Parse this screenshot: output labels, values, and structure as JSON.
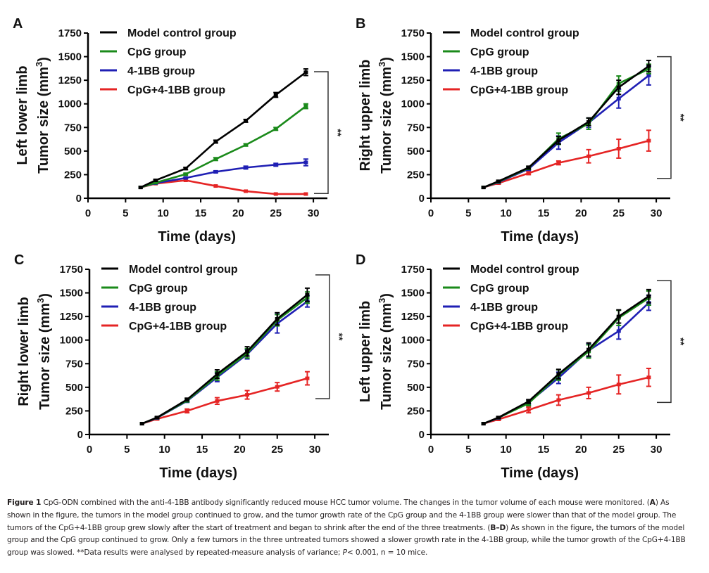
{
  "chart_data": [
    {
      "type": "line",
      "panel_label": "A",
      "ylabel_line1": "Left lower limb",
      "ylabel_line2": "Tumor size (mm",
      "ylabel_sup": "3",
      "ylabel_close": ")",
      "xlabel": "Time (days)",
      "xlim": [
        0,
        32
      ],
      "ylim": [
        0,
        1750
      ],
      "xticks": [
        0,
        5,
        10,
        15,
        20,
        25,
        30
      ],
      "yticks": [
        0,
        250,
        500,
        750,
        1000,
        1250,
        1500,
        1750
      ],
      "x": [
        7,
        9,
        13,
        17,
        21,
        25,
        29
      ],
      "series": [
        {
          "name": "Model control group",
          "color": "#000000",
          "values": [
            115,
            190,
            315,
            600,
            820,
            1095,
            1335
          ],
          "errors": [
            5,
            10,
            12,
            15,
            15,
            25,
            35
          ]
        },
        {
          "name": "CpG group",
          "color": "#1a8a1a",
          "values": [
            115,
            165,
            255,
            415,
            565,
            735,
            975
          ],
          "errors": [
            5,
            8,
            10,
            15,
            12,
            15,
            25
          ]
        },
        {
          "name": "4-1BB group",
          "color": "#1f1fb4",
          "values": [
            115,
            160,
            215,
            280,
            325,
            355,
            380
          ],
          "errors": [
            5,
            8,
            8,
            10,
            15,
            15,
            35
          ]
        },
        {
          "name": "CpG+4-1BB group",
          "color": "#e52424",
          "values": [
            115,
            155,
            190,
            130,
            75,
            45,
            45
          ],
          "errors": [
            5,
            5,
            5,
            5,
            5,
            5,
            5
          ]
        }
      ],
      "significance": {
        "label": "**",
        "range": [
          50,
          1340
        ]
      },
      "legend_position": "top-left"
    },
    {
      "type": "line",
      "panel_label": "B",
      "ylabel_line1": "Right upper limb",
      "ylabel_line2": "Tumor size (mm",
      "ylabel_sup": "3",
      "ylabel_close": ")",
      "xlabel": "Time (days)",
      "xlim": [
        0,
        32
      ],
      "ylim": [
        0,
        1750
      ],
      "xticks": [
        0,
        5,
        10,
        15,
        20,
        25,
        30
      ],
      "yticks": [
        0,
        250,
        500,
        750,
        1000,
        1250,
        1500,
        1750
      ],
      "x": [
        7,
        9,
        13,
        17,
        21,
        25,
        29
      ],
      "series": [
        {
          "name": "Model control group",
          "color": "#000000",
          "values": [
            115,
            180,
            325,
            615,
            810,
            1175,
            1400
          ],
          "errors": [
            5,
            10,
            15,
            40,
            40,
            75,
            60
          ]
        },
        {
          "name": "CpG group",
          "color": "#1a8a1a",
          "values": [
            115,
            175,
            320,
            630,
            790,
            1215,
            1370
          ],
          "errors": [
            5,
            10,
            15,
            60,
            60,
            80,
            50
          ]
        },
        {
          "name": "4-1BB group",
          "color": "#1f1fb4",
          "values": [
            115,
            170,
            310,
            590,
            800,
            1055,
            1300
          ],
          "errors": [
            5,
            10,
            15,
            70,
            50,
            100,
            100
          ]
        },
        {
          "name": "CpG+4-1BB group",
          "color": "#e52424",
          "values": [
            115,
            160,
            265,
            375,
            445,
            525,
            610
          ],
          "errors": [
            5,
            10,
            15,
            20,
            70,
            100,
            110
          ]
        }
      ],
      "significance": {
        "label": "**",
        "range": [
          210,
          1500
        ]
      },
      "legend_position": "top-left"
    },
    {
      "type": "line",
      "panel_label": "C",
      "ylabel_line1": "Right lower limb",
      "ylabel_line2": "Tumor size (mm",
      "ylabel_sup": "3",
      "ylabel_close": ")",
      "xlabel": "Time (days)",
      "xlim": [
        0,
        32
      ],
      "ylim": [
        0,
        1750
      ],
      "xticks": [
        0,
        5,
        10,
        15,
        20,
        25,
        30
      ],
      "yticks": [
        0,
        250,
        500,
        750,
        1000,
        1250,
        1500,
        1750
      ],
      "x": [
        7,
        9,
        13,
        17,
        21,
        25,
        29
      ],
      "series": [
        {
          "name": "Model control group",
          "color": "#000000",
          "values": [
            115,
            180,
            370,
            640,
            880,
            1225,
            1480
          ],
          "errors": [
            5,
            10,
            15,
            45,
            50,
            65,
            70
          ]
        },
        {
          "name": "CpG group",
          "color": "#1a8a1a",
          "values": [
            115,
            178,
            360,
            620,
            860,
            1210,
            1450
          ],
          "errors": [
            5,
            10,
            15,
            45,
            50,
            60,
            60
          ]
        },
        {
          "name": "4-1BB group",
          "color": "#1f1fb4",
          "values": [
            115,
            175,
            355,
            605,
            850,
            1175,
            1410
          ],
          "errors": [
            5,
            10,
            15,
            45,
            50,
            100,
            60
          ]
        },
        {
          "name": "CpG+4-1BB group",
          "color": "#e52424",
          "values": [
            115,
            165,
            250,
            355,
            420,
            505,
            595
          ],
          "errors": [
            5,
            10,
            20,
            35,
            45,
            45,
            70
          ]
        }
      ],
      "significance": {
        "label": "**",
        "range": [
          380,
          1690
        ]
      },
      "legend_position": "top-left"
    },
    {
      "type": "line",
      "panel_label": "D",
      "ylabel_line1": "Left upper limb",
      "ylabel_line2": "Tumor size (mm",
      "ylabel_sup": "3",
      "ylabel_close": ")",
      "xlabel": "Time (days)",
      "xlim": [
        0,
        32
      ],
      "ylim": [
        0,
        1750
      ],
      "xticks": [
        0,
        5,
        10,
        15,
        20,
        25,
        30
      ],
      "yticks": [
        0,
        250,
        500,
        750,
        1000,
        1250,
        1500,
        1750
      ],
      "x": [
        7,
        9,
        13,
        17,
        21,
        25,
        29
      ],
      "series": [
        {
          "name": "Model control group",
          "color": "#000000",
          "values": [
            115,
            180,
            350,
            640,
            900,
            1250,
            1465
          ],
          "errors": [
            5,
            10,
            20,
            50,
            70,
            70,
            70
          ]
        },
        {
          "name": "CpG group",
          "color": "#1a8a1a",
          "values": [
            115,
            178,
            330,
            630,
            880,
            1235,
            1445
          ],
          "errors": [
            5,
            10,
            25,
            55,
            70,
            80,
            75
          ]
        },
        {
          "name": "4-1BB group",
          "color": "#1f1fb4",
          "values": [
            115,
            175,
            340,
            600,
            890,
            1095,
            1395
          ],
          "errors": [
            5,
            10,
            25,
            60,
            70,
            85,
            80
          ]
        },
        {
          "name": "CpG+4-1BB group",
          "color": "#e52424",
          "values": [
            115,
            160,
            260,
            365,
            440,
            530,
            605
          ],
          "errors": [
            5,
            10,
            30,
            55,
            60,
            100,
            95
          ]
        }
      ],
      "significance": {
        "label": "**",
        "range": [
          340,
          1630
        ]
      },
      "legend_position": "top-left"
    }
  ],
  "caption": {
    "figure_label": "Figure 1",
    "text_1": " CpG-ODN combined with the anti-4-1BB antibody significantly reduced mouse HCC tumor volume. The changes in the tumor volume of each mouse were monitored. (",
    "bold_a": "A",
    "text_2": ") As shown in the figure, the tumors in the model group continued to grow, and the tumor growth rate of the CpG group and the 4-1BB group were slower than that of the model group. The tumors of the CpG+4-1BB group grew slowly after the start of treatment and began to shrink after the end of the three treatments. (",
    "bold_bd": "B–D",
    "text_3": ") As shown in the figure, the tumors of the model group and the CpG group continued to grow. Only a few tumors in the three untreated tumors showed a slower growth rate in the 4-1BB group, while the tumor growth of the CpG+4-1BB group was slowed. **Data results were analysed by repeated-measure analysis of variance; ",
    "italic_p": "P",
    "text_4": "< 0.001, n = 10 mice."
  }
}
